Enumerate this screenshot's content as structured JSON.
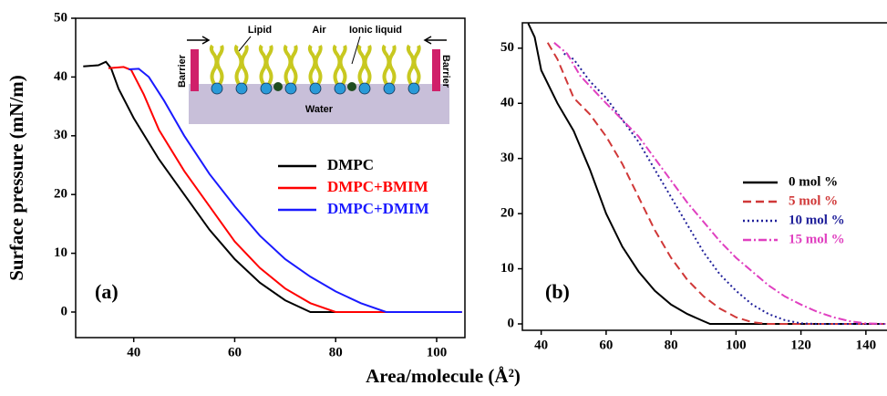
{
  "xlabel": "Area/molecule (Å²)",
  "ylabel": "Surface pressure (mN/m)",
  "chart_data": [
    {
      "type": "line",
      "panel_label": "(a)",
      "annotations": [
        "Lipid",
        "Air",
        "Ionic liquid",
        "Barrier",
        "Barrier",
        "Water"
      ],
      "xlim": [
        28.5,
        105.6
      ],
      "xticks": [
        40,
        60,
        80,
        100
      ],
      "ylim": [
        -4.35,
        50
      ],
      "yticks": [
        0,
        10,
        20,
        30,
        40,
        50
      ],
      "series": [
        {
          "name": "DMPC",
          "color": "#000000",
          "line_style": "solid",
          "x": [
            30,
            33,
            34.5,
            35.5,
            37,
            40,
            45,
            50,
            55,
            60,
            65,
            70,
            75,
            105
          ],
          "values": [
            41.8,
            42,
            42.6,
            41.5,
            38,
            33,
            26,
            20,
            14,
            9,
            5,
            2,
            0,
            0
          ]
        },
        {
          "name": "DMPC+BMIM",
          "color": "#ff0000",
          "line_style": "solid",
          "x": [
            35,
            38,
            39.5,
            42,
            45,
            50,
            55,
            60,
            65,
            70,
            75,
            80,
            105
          ],
          "values": [
            41.5,
            41.7,
            41.2,
            37,
            31,
            24,
            18,
            12,
            7.5,
            4,
            1.5,
            0,
            0
          ]
        },
        {
          "name": "DMPC+DMIM",
          "color": "#1a1aff",
          "line_style": "solid",
          "x": [
            39,
            41,
            43,
            46,
            50,
            55,
            60,
            65,
            70,
            75,
            80,
            85,
            90,
            105
          ],
          "values": [
            41.3,
            41.4,
            40,
            36,
            30,
            23.5,
            18,
            13,
            9,
            6,
            3.5,
            1.5,
            0,
            0
          ]
        }
      ]
    },
    {
      "type": "line",
      "panel_label": "(b)",
      "xlim": [
        34.2,
        146.5
      ],
      "xticks": [
        40,
        60,
        80,
        100,
        120,
        140
      ],
      "ylim": [
        -1.16,
        54.6
      ],
      "yticks": [
        0,
        10,
        20,
        30,
        40,
        50
      ],
      "series": [
        {
          "name": "0 mol %",
          "color": "#000000",
          "line_style": "solid",
          "x": [
            36,
            38,
            40,
            45,
            50,
            55,
            60,
            65,
            70,
            75,
            80,
            85,
            90,
            92,
            146
          ],
          "values": [
            54.5,
            52,
            46,
            40,
            35,
            28,
            20,
            14,
            9.5,
            6,
            3.5,
            1.8,
            0.5,
            0,
            0
          ]
        },
        {
          "name": "5 mol %",
          "color": "#d03838",
          "line_style": "dashed",
          "x": [
            42,
            45,
            50,
            55,
            60,
            65,
            70,
            75,
            80,
            85,
            90,
            95,
            100,
            105,
            110,
            146
          ],
          "values": [
            51,
            48,
            41,
            38,
            34,
            29,
            23,
            17,
            12,
            8,
            5,
            2.8,
            1.2,
            0.3,
            0,
            0
          ]
        },
        {
          "name": "10 mol %",
          "color": "#20209a",
          "line_style": "dotted",
          "x": [
            47,
            50,
            55,
            60,
            65,
            70,
            75,
            80,
            85,
            90,
            95,
            100,
            105,
            110,
            115,
            120,
            125,
            146
          ],
          "values": [
            49,
            48,
            44,
            41,
            37,
            33,
            28,
            23,
            18,
            13,
            9,
            6,
            3.5,
            1.8,
            0.7,
            0.1,
            0,
            0
          ]
        },
        {
          "name": "15 mol %",
          "color": "#e040c0",
          "line_style": "dashdot",
          "x": [
            44,
            48,
            52,
            56,
            60,
            65,
            70,
            75,
            80,
            85,
            90,
            95,
            100,
            105,
            110,
            115,
            120,
            125,
            130,
            135,
            140,
            146
          ],
          "values": [
            51,
            49,
            45,
            42.5,
            40,
            37,
            34,
            30,
            26,
            22,
            18.5,
            15,
            12,
            9.5,
            7,
            5,
            3.5,
            2.2,
            1.2,
            0.5,
            0.1,
            0
          ]
        }
      ]
    }
  ]
}
